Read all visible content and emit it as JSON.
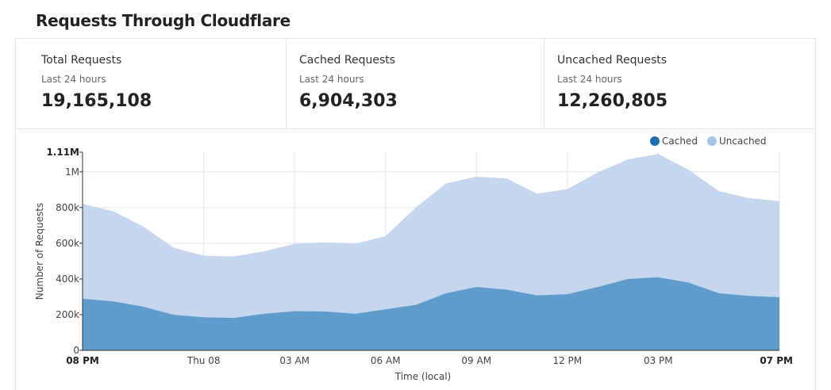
{
  "header": {
    "title": "Requests Through Cloudflare"
  },
  "stats": [
    {
      "label": "Total Requests",
      "period": "Last 24 hours",
      "value": "19,165,108"
    },
    {
      "label": "Cached Requests",
      "period": "Last 24 hours",
      "value": "6,904,303"
    },
    {
      "label": "Uncached Requests",
      "period": "Last 24 hours",
      "value": "12,260,805"
    }
  ],
  "colors": {
    "cached": "#1f6eb0",
    "cached_area": "#5f9ccc",
    "uncached": "#a9c3e8",
    "uncached_area": "#c6d6ef"
  },
  "chart_data": {
    "type": "area",
    "stacked": true,
    "xlabel": "Time (local)",
    "ylabel": "Number of Requests",
    "ylim": [
      0,
      1110000
    ],
    "y_ticks": [
      {
        "value": 0,
        "label": "0"
      },
      {
        "value": 200000,
        "label": "200k"
      },
      {
        "value": 400000,
        "label": "400k"
      },
      {
        "value": 600000,
        "label": "600k"
      },
      {
        "value": 800000,
        "label": "800k"
      },
      {
        "value": 1000000,
        "label": "1M"
      },
      {
        "value": 1110000,
        "label": "1.11M"
      }
    ],
    "x_ticks": [
      {
        "index": 0,
        "label": "08 PM"
      },
      {
        "index": 4,
        "label": "Thu 08"
      },
      {
        "index": 7,
        "label": "03 AM"
      },
      {
        "index": 10,
        "label": "06 AM"
      },
      {
        "index": 13,
        "label": "09 AM"
      },
      {
        "index": 16,
        "label": "12 PM"
      },
      {
        "index": 19,
        "label": "03 PM"
      },
      {
        "index": 23,
        "label": "07 PM"
      }
    ],
    "legend": [
      "Cached",
      "Uncached"
    ],
    "legend_position": "top-right",
    "series": [
      {
        "name": "Cached",
        "values": [
          290000,
          275000,
          245000,
          200000,
          185000,
          182000,
          205000,
          220000,
          218000,
          205000,
          230000,
          255000,
          320000,
          355000,
          340000,
          308000,
          315000,
          355000,
          400000,
          410000,
          380000,
          320000,
          305000,
          298000
        ]
      },
      {
        "name": "Uncached",
        "values": [
          530000,
          505000,
          450000,
          375000,
          345000,
          344000,
          350000,
          377000,
          387000,
          392000,
          410000,
          545000,
          615000,
          618000,
          623000,
          570000,
          588000,
          642000,
          670000,
          690000,
          632000,
          572000,
          548000,
          538000
        ]
      }
    ]
  }
}
